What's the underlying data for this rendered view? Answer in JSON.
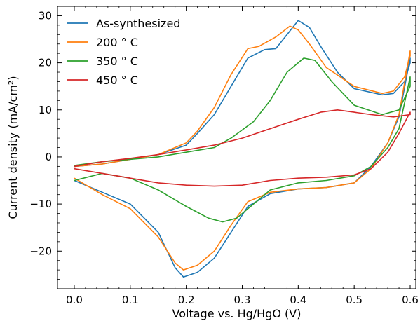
{
  "chart_data": {
    "type": "line",
    "title": "",
    "xlabel": "Voltage vs. Hg/HgO (V)",
    "ylabel": "Current density (mA/cm²)",
    "xlim": [
      -0.03,
      0.61
    ],
    "ylim": [
      -28,
      32
    ],
    "xticks": [
      0.0,
      0.1,
      0.2,
      0.3,
      0.4,
      0.5,
      0.6
    ],
    "xtick_labels": [
      "0.0",
      "0.1",
      "0.2",
      "0.3",
      "0.4",
      "0.5",
      "0.6"
    ],
    "yticks": [
      -20,
      -10,
      0,
      10,
      20,
      30
    ],
    "ytick_labels": [
      "−20",
      "−10",
      "0",
      "10",
      "20",
      "30"
    ],
    "grid": false,
    "legend_position": "top-left",
    "series": [
      {
        "name": "As-synthesized",
        "color": "#1f77b4",
        "points": [
          [
            0.0,
            -5.0
          ],
          [
            0.05,
            -7.5
          ],
          [
            0.1,
            -10.0
          ],
          [
            0.15,
            -16.0
          ],
          [
            0.18,
            -23.5
          ],
          [
            0.195,
            -25.5
          ],
          [
            0.22,
            -24.5
          ],
          [
            0.25,
            -21.5
          ],
          [
            0.28,
            -16.0
          ],
          [
            0.31,
            -10.5
          ],
          [
            0.35,
            -7.8
          ],
          [
            0.4,
            -6.8
          ],
          [
            0.45,
            -6.5
          ],
          [
            0.5,
            -5.5
          ],
          [
            0.53,
            -2.0
          ],
          [
            0.56,
            3.0
          ],
          [
            0.58,
            8.5
          ],
          [
            0.6,
            21.0
          ],
          [
            0.6,
            20.0
          ],
          [
            0.59,
            16.0
          ],
          [
            0.57,
            13.5
          ],
          [
            0.55,
            13.2
          ],
          [
            0.5,
            14.5
          ],
          [
            0.47,
            18.0
          ],
          [
            0.44,
            23.5
          ],
          [
            0.42,
            27.5
          ],
          [
            0.4,
            29.0
          ],
          [
            0.38,
            26.0
          ],
          [
            0.36,
            23.0
          ],
          [
            0.34,
            22.8
          ],
          [
            0.31,
            21.0
          ],
          [
            0.28,
            15.0
          ],
          [
            0.25,
            9.0
          ],
          [
            0.22,
            5.0
          ],
          [
            0.2,
            2.5
          ],
          [
            0.15,
            0.5
          ],
          [
            0.1,
            -0.5
          ],
          [
            0.05,
            -1.5
          ],
          [
            0.0,
            -2.0
          ]
        ]
      },
      {
        "name": "200 ° C",
        "color": "#ff7f0e",
        "points": [
          [
            0.0,
            -4.5
          ],
          [
            0.05,
            -8.0
          ],
          [
            0.1,
            -11.0
          ],
          [
            0.15,
            -17.0
          ],
          [
            0.18,
            -22.5
          ],
          [
            0.195,
            -24.0
          ],
          [
            0.22,
            -23.0
          ],
          [
            0.25,
            -20.0
          ],
          [
            0.28,
            -14.5
          ],
          [
            0.31,
            -9.5
          ],
          [
            0.35,
            -7.5
          ],
          [
            0.4,
            -6.8
          ],
          [
            0.45,
            -6.5
          ],
          [
            0.5,
            -5.5
          ],
          [
            0.53,
            -2.5
          ],
          [
            0.56,
            3.0
          ],
          [
            0.58,
            9.0
          ],
          [
            0.6,
            22.5
          ],
          [
            0.6,
            21.5
          ],
          [
            0.59,
            17.0
          ],
          [
            0.57,
            14.0
          ],
          [
            0.55,
            13.5
          ],
          [
            0.5,
            15.0
          ],
          [
            0.45,
            19.0
          ],
          [
            0.42,
            24.0
          ],
          [
            0.4,
            27.0
          ],
          [
            0.385,
            27.8
          ],
          [
            0.36,
            25.5
          ],
          [
            0.33,
            23.5
          ],
          [
            0.31,
            23.0
          ],
          [
            0.28,
            17.5
          ],
          [
            0.25,
            10.5
          ],
          [
            0.22,
            5.5
          ],
          [
            0.2,
            3.0
          ],
          [
            0.15,
            0.5
          ],
          [
            0.1,
            -0.5
          ],
          [
            0.05,
            -1.5
          ],
          [
            0.0,
            -2.0
          ]
        ]
      },
      {
        "name": "350 ° C",
        "color": "#2ca02c",
        "points": [
          [
            0.0,
            -5.0
          ],
          [
            0.05,
            -3.5
          ],
          [
            0.1,
            -4.5
          ],
          [
            0.15,
            -7.0
          ],
          [
            0.2,
            -10.5
          ],
          [
            0.24,
            -13.0
          ],
          [
            0.265,
            -13.8
          ],
          [
            0.29,
            -13.0
          ],
          [
            0.32,
            -10.0
          ],
          [
            0.35,
            -7.0
          ],
          [
            0.4,
            -5.5
          ],
          [
            0.45,
            -5.0
          ],
          [
            0.5,
            -4.0
          ],
          [
            0.53,
            -2.0
          ],
          [
            0.56,
            2.0
          ],
          [
            0.58,
            6.0
          ],
          [
            0.6,
            17.0
          ],
          [
            0.6,
            15.0
          ],
          [
            0.58,
            10.0
          ],
          [
            0.55,
            9.0
          ],
          [
            0.5,
            11.0
          ],
          [
            0.46,
            16.0
          ],
          [
            0.43,
            20.5
          ],
          [
            0.41,
            21.0
          ],
          [
            0.38,
            18.0
          ],
          [
            0.35,
            12.0
          ],
          [
            0.32,
            7.5
          ],
          [
            0.28,
            4.0
          ],
          [
            0.25,
            2.0
          ],
          [
            0.2,
            1.0
          ],
          [
            0.15,
            0.0
          ],
          [
            0.1,
            -0.5
          ],
          [
            0.05,
            -1.0
          ],
          [
            0.0,
            -1.8
          ]
        ]
      },
      {
        "name": "450 ° C",
        "color": "#d62728",
        "points": [
          [
            0.0,
            -2.5
          ],
          [
            0.05,
            -3.5
          ],
          [
            0.1,
            -4.5
          ],
          [
            0.15,
            -5.5
          ],
          [
            0.2,
            -6.0
          ],
          [
            0.25,
            -6.2
          ],
          [
            0.3,
            -6.0
          ],
          [
            0.35,
            -5.0
          ],
          [
            0.4,
            -4.5
          ],
          [
            0.45,
            -4.3
          ],
          [
            0.5,
            -3.8
          ],
          [
            0.53,
            -2.5
          ],
          [
            0.56,
            1.0
          ],
          [
            0.58,
            5.0
          ],
          [
            0.6,
            9.5
          ],
          [
            0.6,
            9.0
          ],
          [
            0.57,
            8.5
          ],
          [
            0.53,
            9.0
          ],
          [
            0.5,
            9.5
          ],
          [
            0.47,
            10.0
          ],
          [
            0.44,
            9.5
          ],
          [
            0.4,
            8.0
          ],
          [
            0.35,
            6.0
          ],
          [
            0.3,
            4.0
          ],
          [
            0.25,
            2.5
          ],
          [
            0.2,
            1.5
          ],
          [
            0.15,
            0.5
          ],
          [
            0.1,
            -0.3
          ],
          [
            0.05,
            -1.0
          ],
          [
            0.0,
            -2.0
          ]
        ]
      }
    ]
  }
}
